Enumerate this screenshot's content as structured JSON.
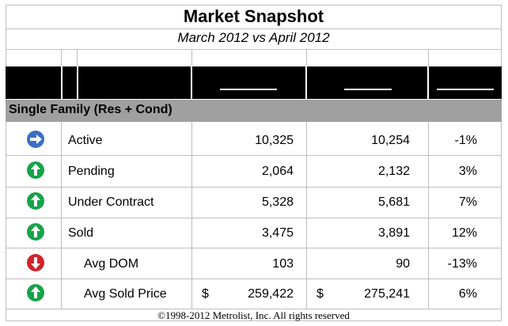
{
  "title": "Market Snapshot",
  "subtitle": "March 2012 vs April 2012",
  "section_label": "Single Family (Res + Cond)",
  "rows": [
    {
      "label": "Active",
      "icon": "right-arrow-icon",
      "direction": "flat",
      "march": "10,325",
      "april": "10,254",
      "change": "-1%",
      "march_currency": "",
      "april_currency": ""
    },
    {
      "label": "Pending",
      "icon": "up-arrow-icon",
      "direction": "up",
      "march": "2,064",
      "april": "2,132",
      "change": "3%",
      "march_currency": "",
      "april_currency": ""
    },
    {
      "label": "Under Contract",
      "icon": "up-arrow-icon",
      "direction": "up",
      "march": "5,328",
      "april": "5,681",
      "change": "7%",
      "march_currency": "",
      "april_currency": ""
    },
    {
      "label": "Sold",
      "icon": "up-arrow-icon",
      "direction": "up",
      "march": "3,475",
      "april": "3,891",
      "change": "12%",
      "march_currency": "",
      "april_currency": ""
    },
    {
      "label": "Avg DOM",
      "icon": "down-arrow-icon",
      "direction": "down",
      "march": "103",
      "april": "90",
      "change": "-13%",
      "march_currency": "",
      "april_currency": ""
    },
    {
      "label": "Avg Sold Price",
      "icon": "up-arrow-icon",
      "direction": "up",
      "march": "259,422",
      "april": "275,241",
      "change": "6%",
      "march_currency": "$",
      "april_currency": "$"
    }
  ],
  "colors": {
    "flat": "#3a6fc4",
    "up": "#16a34a",
    "down": "#d1232a",
    "header_band": "#000000",
    "section_band": "#a0a0a0"
  },
  "footer": "©1998-2012 Metrolist, Inc.  All rights reserved"
}
